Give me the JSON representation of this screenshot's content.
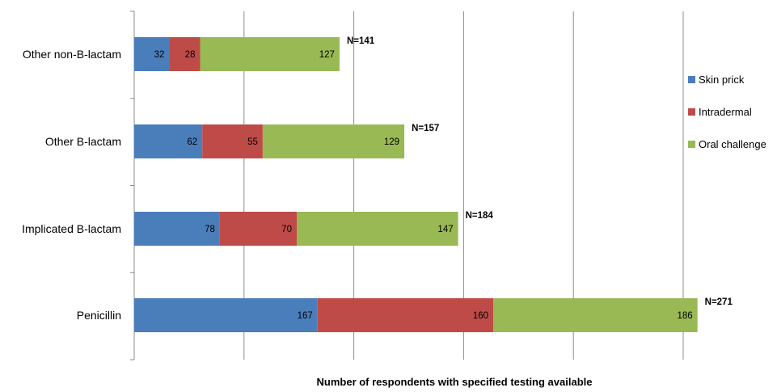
{
  "chart_data": {
    "type": "bar",
    "orientation": "horizontal",
    "stacked": true,
    "categories": [
      "Other non-B-lactam",
      "Other B-lactam",
      "Implicated B-lactam",
      "Penicillin"
    ],
    "series": [
      {
        "name": "Skin prick",
        "color": "#4a7ebb",
        "values": [
          32,
          62,
          78,
          167
        ]
      },
      {
        "name": "Intradermal",
        "color": "#be4b48",
        "values": [
          28,
          55,
          70,
          160
        ]
      },
      {
        "name": "Oral challenge",
        "color": "#98b954",
        "values": [
          127,
          129,
          147,
          186
        ]
      }
    ],
    "totals": [
      "N=141",
      "N=157",
      "N=184",
      "N=271"
    ],
    "xlabel": "Number of respondents with specified testing available",
    "ylabel": "",
    "title": "",
    "xlim": [
      0,
      520
    ],
    "x_gridline_interval": 100,
    "grid": "vertical",
    "legend_position": "right"
  }
}
